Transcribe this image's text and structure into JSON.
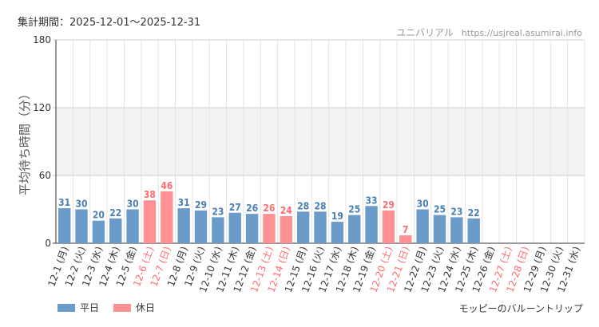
{
  "header": {
    "period_label": "集計期間：2025-12-01〜2025-12-31",
    "brand_name": "ユニバリアル",
    "brand_url": "https://usjreal.asumirai.info"
  },
  "footer": {
    "attraction_name": "モッピーのバルーントリップ"
  },
  "legend": {
    "items": [
      {
        "label": "平日",
        "color": "#6b9bc8"
      },
      {
        "label": "休日",
        "color": "#ff9194"
      }
    ]
  },
  "colors": {
    "weekday_bar": "#6b9bc8",
    "holiday_bar": "#ff9194",
    "weekday_label": "#4a7fb5",
    "holiday_label": "#ff6b70",
    "band": "#f2f2f2",
    "grid": "#e4e4e4",
    "axis": "#333333"
  },
  "chart_data": {
    "type": "bar",
    "ylabel": "平均待ち時間（分）",
    "ylim": [
      0,
      180
    ],
    "yticks": [
      0,
      60,
      120,
      180
    ],
    "shaded_band": [
      60,
      120
    ],
    "categories": [
      "12-1 (月)",
      "12-2 (火)",
      "12-3 (水)",
      "12-4 (木)",
      "12-5 (金)",
      "12-6 (土)",
      "12-7 (日)",
      "12-8 (月)",
      "12-9 (火)",
      "12-10 (水)",
      "12-11 (木)",
      "12-12 (金)",
      "12-13 (土)",
      "12-14 (日)",
      "12-15 (月)",
      "12-16 (火)",
      "12-17 (水)",
      "12-18 (木)",
      "12-19 (金)",
      "12-20 (土)",
      "12-21 (日)",
      "12-22 (月)",
      "12-23 (火)",
      "12-24 (水)",
      "12-25 (木)",
      "12-26 (金)",
      "12-27 (土)",
      "12-28 (日)",
      "12-29 (月)",
      "12-30 (火)",
      "12-31 (水)"
    ],
    "values": [
      31,
      30,
      20,
      22,
      30,
      38,
      46,
      31,
      29,
      23,
      27,
      26,
      26,
      24,
      28,
      28,
      19,
      25,
      33,
      29,
      7,
      30,
      25,
      23,
      22,
      null,
      null,
      null,
      null,
      null,
      null
    ],
    "holiday": [
      false,
      false,
      false,
      false,
      false,
      true,
      true,
      false,
      false,
      false,
      false,
      false,
      true,
      true,
      false,
      false,
      false,
      false,
      false,
      true,
      true,
      false,
      false,
      false,
      false,
      false,
      true,
      true,
      false,
      false,
      false
    ]
  }
}
